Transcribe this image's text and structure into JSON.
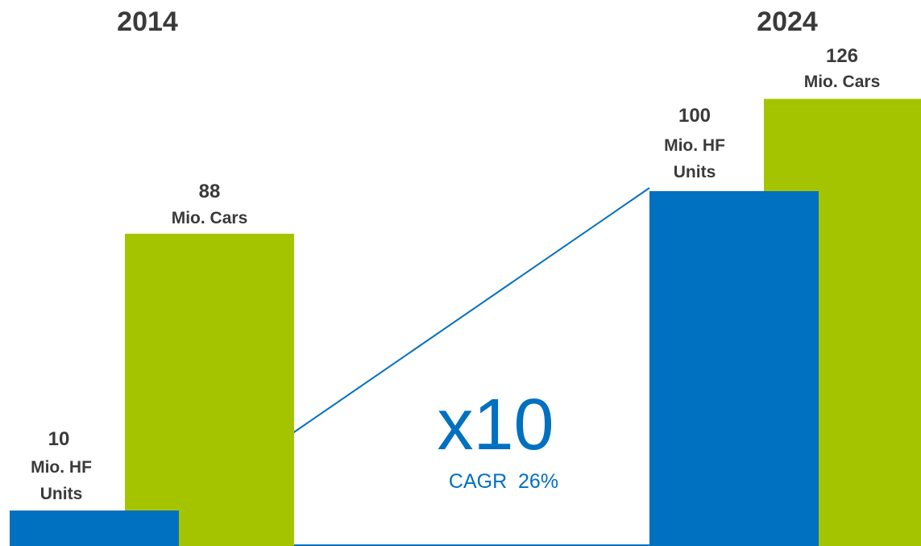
{
  "colors": {
    "hf": "#0070C0",
    "cars": "#A5C400",
    "text": "#3a3a3a"
  },
  "chart_data": {
    "type": "bar",
    "categories": [
      "2014",
      "2024"
    ],
    "series": [
      {
        "key": "hf",
        "values": [
          10,
          100
        ],
        "labels": [
          {
            "value": "10",
            "unit1": "Mio. HF",
            "unit2": "Units"
          },
          {
            "value": "100",
            "unit1": "Mio. HF",
            "unit2": "Units"
          }
        ]
      },
      {
        "key": "cars",
        "values": [
          88,
          126
        ],
        "labels": [
          {
            "value": "88",
            "unit1": "Mio. Cars"
          },
          {
            "value": "126",
            "unit1": "Mio. Cars"
          }
        ]
      }
    ],
    "annotation": {
      "multiplier": "x10",
      "cagr": "CAGR  26%"
    }
  }
}
